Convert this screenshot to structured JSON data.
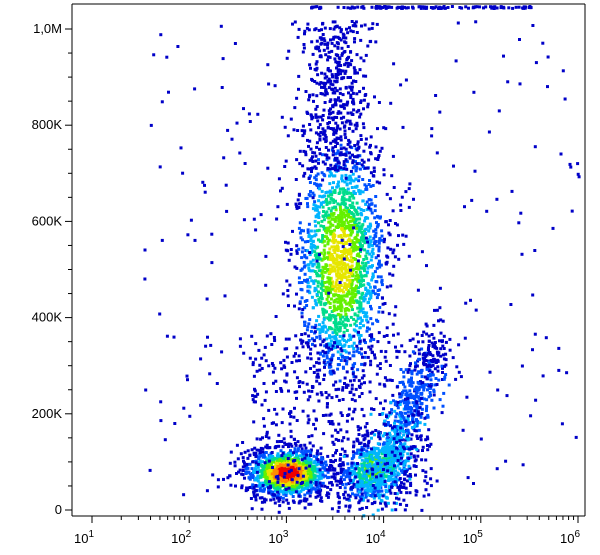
{
  "chart_data": {
    "type": "scatter",
    "title": "",
    "xlabel": "",
    "ylabel": "",
    "x_scale": "log",
    "xlim": [
      10,
      1000000
    ],
    "ylim": [
      0,
      1050000
    ],
    "grid": false,
    "legend": "none",
    "x_ticks": [
      {
        "value": 10,
        "base": "10",
        "exp": "1"
      },
      {
        "value": 100,
        "base": "10",
        "exp": "2"
      },
      {
        "value": 1000,
        "base": "10",
        "exp": "3"
      },
      {
        "value": 10000,
        "base": "10",
        "exp": "4"
      },
      {
        "value": 100000,
        "base": "10",
        "exp": "5"
      },
      {
        "value": 1000000,
        "base": "10",
        "exp": "6"
      }
    ],
    "y_ticks": [
      {
        "value": 0,
        "label": "0"
      },
      {
        "value": 200000,
        "label": "200K"
      },
      {
        "value": 400000,
        "label": "400K"
      },
      {
        "value": 600000,
        "label": "600K"
      },
      {
        "value": 800000,
        "label": "800K"
      },
      {
        "value": 1000000,
        "label": "1,0M"
      }
    ],
    "populations": [
      {
        "center_x": 1000,
        "center_y": 80000,
        "relative_density": 1.0
      },
      {
        "center_x": 3500,
        "center_y": 520000,
        "relative_density": 0.55
      },
      {
        "center_x": 8000,
        "center_y": 90000,
        "relative_density": 0.4
      },
      {
        "center_x": 20000,
        "center_y": 250000,
        "relative_density": 0.1
      }
    ],
    "density_colors": [
      "#0000c8",
      "#0050ff",
      "#00b4ff",
      "#00dc8c",
      "#64f000",
      "#e6e600",
      "#ff8c00",
      "#f00000"
    ]
  }
}
